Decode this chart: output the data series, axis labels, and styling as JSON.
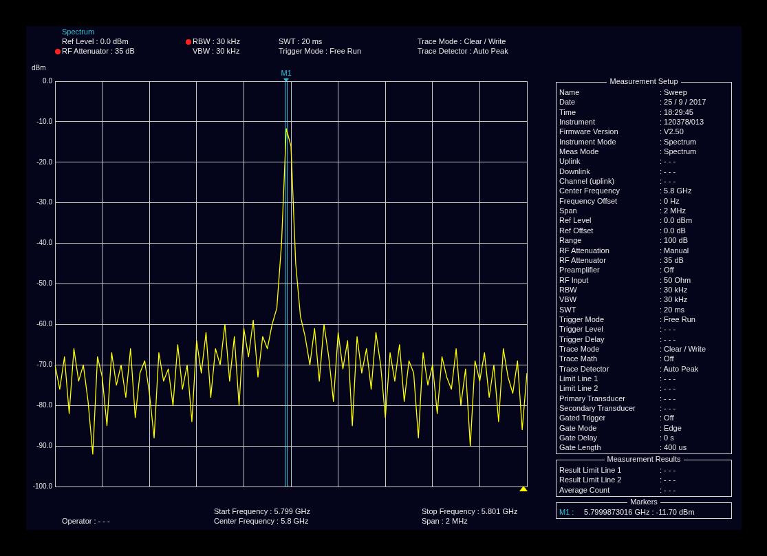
{
  "chart_data": [
    {
      "type": "line",
      "title": "Spectrum",
      "ylabel": "dBm",
      "categories": [
        null,
        null,
        null,
        null,
        null,
        null,
        null,
        null,
        null,
        null,
        null,
        null,
        null,
        null,
        null,
        null,
        null,
        null,
        null,
        null,
        null,
        null,
        null,
        null,
        null,
        null,
        null,
        null,
        null,
        null,
        null,
        null,
        null,
        null,
        null,
        null,
        null,
        null,
        null,
        null,
        null,
        null,
        null,
        null,
        null,
        null,
        null,
        null,
        null,
        null,
        null,
        null,
        null,
        null,
        null,
        null,
        null,
        null,
        null,
        null,
        null,
        null,
        null,
        null,
        null,
        null,
        null,
        null,
        null,
        null,
        null,
        null,
        null,
        null,
        null,
        null,
        null,
        null,
        null,
        null,
        null,
        null,
        null,
        null,
        null,
        null,
        null,
        null,
        null,
        null,
        null,
        null,
        null,
        null,
        null,
        null,
        null,
        null,
        null,
        null,
        null
      ],
      "series": [
        {
          "color": "#ffff00",
          "values": [
            -70,
            -76,
            -68,
            -82,
            -66,
            -74,
            -70,
            -79,
            -92,
            -68,
            -73,
            -85,
            -67,
            -75,
            -70,
            -78,
            -66,
            -83,
            -72,
            -69,
            -77,
            -88,
            -67,
            -74,
            -71,
            -80,
            -65,
            -76,
            -70,
            -84,
            -64,
            -72,
            -62,
            -78,
            -66,
            -70,
            -60,
            -74,
            -63,
            -80,
            -61,
            -68,
            -59,
            -73,
            -63,
            -66,
            -60,
            -56,
            -40,
            -11.7,
            -16,
            -45,
            -58,
            -63,
            -70,
            -61,
            -74,
            -60,
            -68,
            -79,
            -62,
            -71,
            -64,
            -85,
            -63,
            -72,
            -66,
            -76,
            -62,
            -70,
            -83,
            -67,
            -74,
            -65,
            -79,
            -69,
            -72,
            -88,
            -67,
            -75,
            -70,
            -82,
            -68,
            -73,
            -76,
            -66,
            -80,
            -71,
            -90,
            -69,
            -74,
            -67,
            -78,
            -70,
            -84,
            -66,
            -73,
            -77,
            -69,
            -86,
            -72
          ]
        }
      ],
      "ylim": [
        -100,
        0
      ],
      "yticks": [
        {
          "value": 0,
          "label": "0.0"
        },
        {
          "value": -10,
          "label": "-10.0"
        },
        {
          "value": -20,
          "label": "-20.0"
        },
        {
          "value": -30,
          "label": "-30.0"
        },
        {
          "value": -40,
          "label": "-40.0"
        },
        {
          "value": -50,
          "label": "-50.0"
        },
        {
          "value": -60,
          "label": "-60.0"
        },
        {
          "value": -70,
          "label": "-70.0"
        },
        {
          "value": -80,
          "label": "-80.0"
        },
        {
          "value": -90,
          "label": "-90.0"
        },
        {
          "value": -100,
          "label": "-100.0"
        }
      ],
      "grid": true,
      "legend": false,
      "tick_labels": "y",
      "marker": "none",
      "line_style": "solid",
      "annotations": [
        "M1",
        "Ref Level : 0.0 dBm",
        "RF Attenuator : 35 dB",
        "RBW : 30 kHz",
        "VBW : 30 kHz",
        "SWT : 20 ms",
        "Trigger Mode : Free Run",
        "Trace Mode : Clear / Write",
        "Trace Detector : Auto Peak",
        "Start Frequency : 5.799 GHz",
        "Center Frequency : 5.8 GHz",
        "Stop Frequency : 5.801 GHz",
        "Span : 2 MHz",
        "Operator : - - -"
      ]
    },
    {
      "type": "other",
      "title": "Measurement Setup",
      "annotations": [
        "Name",
        ": Sweep",
        "Date",
        ": 25 / 9 / 2017",
        "Time",
        ": 18:29:45",
        "Instrument",
        ": 120378/013",
        "Firmware Version",
        ": V2.50",
        "Instrument Mode",
        ": Spectrum",
        "Meas Mode",
        ": Spectrum",
        "Uplink",
        ": - - -",
        "Downlink",
        ": - - -",
        "Channel (uplink)",
        ": - - -",
        "Center Frequency",
        ": 5.8 GHz",
        "Frequency Offset",
        ": 0 Hz",
        "Span",
        ": 2 MHz",
        "Ref Level",
        ": 0.0 dBm",
        "Ref Offset",
        ": 0.0 dB",
        "Range",
        ": 100 dB",
        "RF Attenuation",
        ": Manual",
        "RF Attenuator",
        ": 35 dB",
        "Preamplifier",
        ": Off",
        "RF Input",
        ": 50 Ohm",
        "RBW",
        ": 30 kHz",
        "VBW",
        ": 30 kHz",
        "SWT",
        ": 20 ms",
        "Trigger Mode",
        ": Free Run",
        "Trigger Level",
        ": - - -",
        "Trigger Delay",
        ": - - -",
        "Trace Mode",
        ": Clear / Write",
        "Trace Math",
        ": Off",
        "Trace Detector",
        ": Auto Peak",
        "Limit Line 1",
        ": - - -",
        "Limit Line 2",
        ": - - -",
        "Primary Transducer",
        ": - - -",
        "Secondary Transducer",
        ": - - -",
        "Gated Trigger",
        ": Off",
        "Gate Mode",
        ": Edge",
        "Gate Delay",
        ": 0 s",
        "Gate Length",
        ": 400 us"
      ]
    },
    {
      "type": "other",
      "title": "Measurement Results",
      "annotations": [
        "Result Limit Line 1",
        ": - - -",
        "Result Limit Line 2",
        ": - - -",
        "Average Count",
        ": - - -"
      ]
    },
    {
      "type": "other",
      "title": "Markers",
      "annotations": [
        "M1 :",
        "5.7999873016 GHz : -11.70 dBm"
      ]
    }
  ]
}
